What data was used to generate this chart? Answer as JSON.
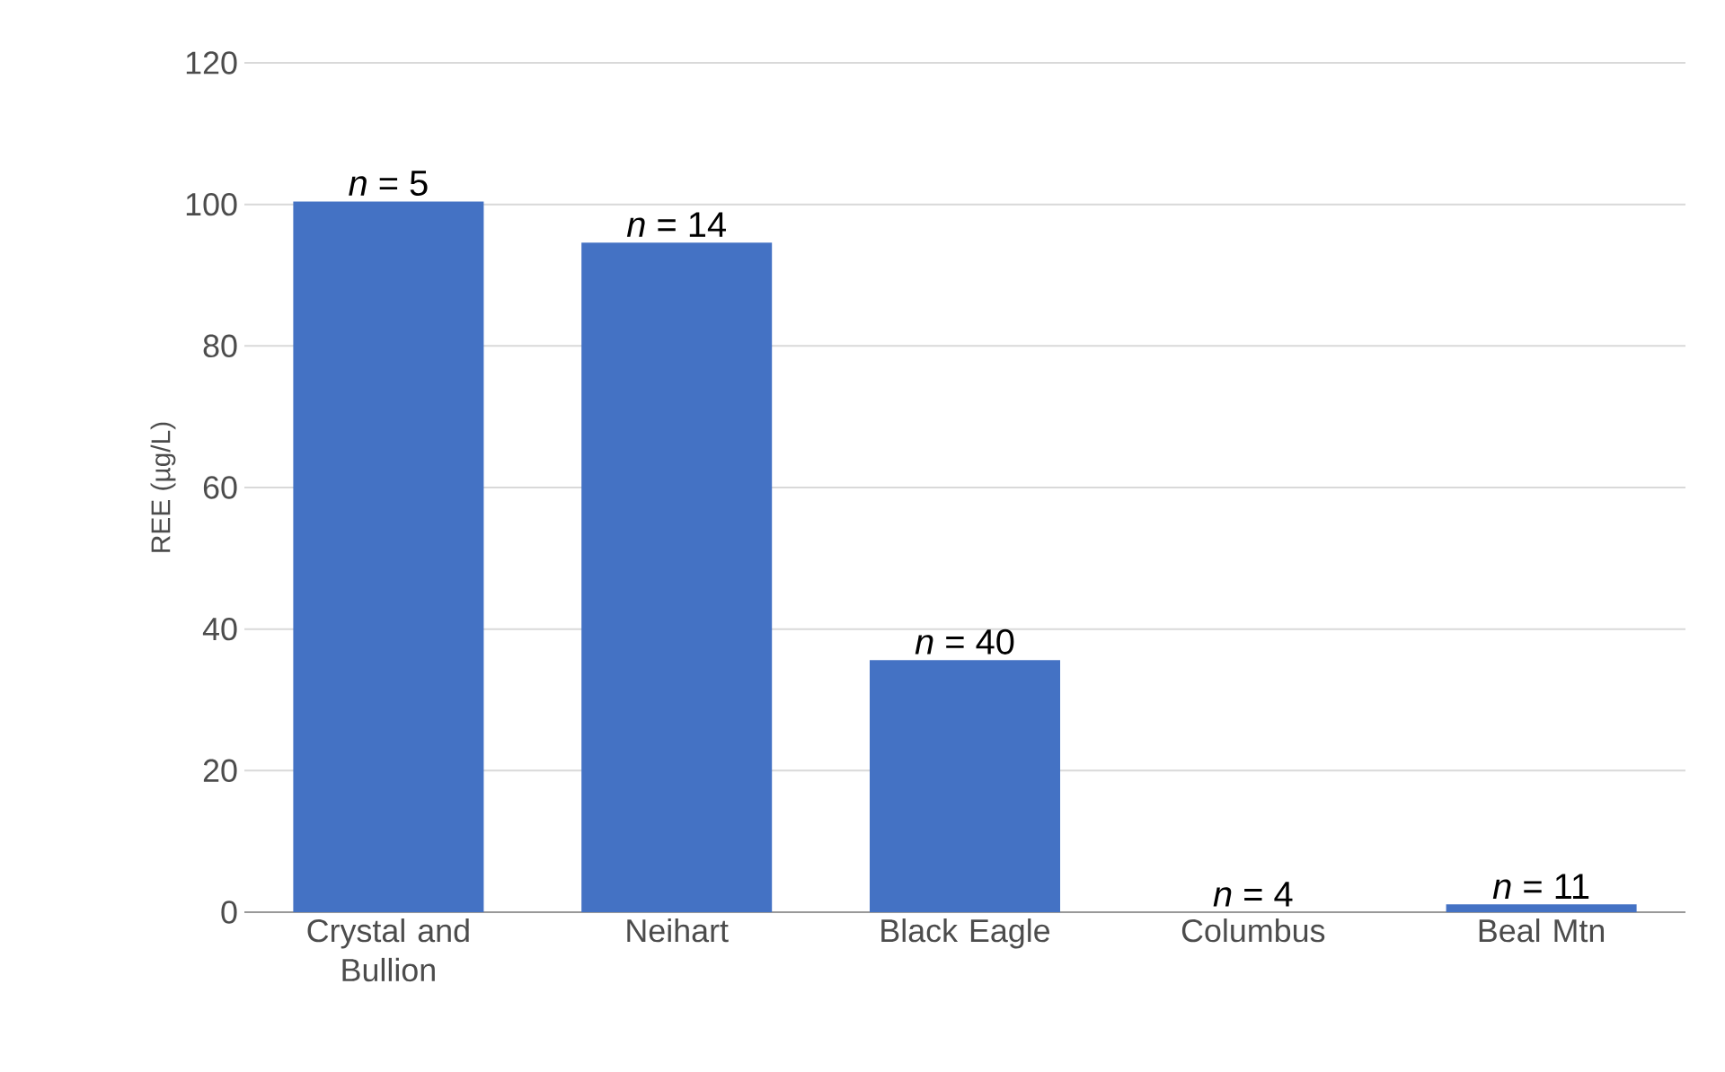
{
  "chart_data": {
    "type": "bar",
    "ylabel": "REE (µg/L)",
    "categories": [
      "Crystal and Bullion",
      "Neihart",
      "Black Eagle",
      "Columbus",
      "Beal Mtn"
    ],
    "values": [
      100.4,
      94.6,
      35.6,
      0,
      1.1
    ],
    "color": "#4472c4",
    "ylim": [
      0,
      120
    ],
    "yticks": [
      0,
      20,
      40,
      60,
      80,
      100,
      120
    ],
    "grid": "y",
    "annotations": [
      {
        "text": "*n* = 5",
        "x": "Crystal and Bullion",
        "y": 100.4
      },
      {
        "text": "*n* = 14",
        "x": "Neihart",
        "y": 94.6
      },
      {
        "text": "*n* = 40",
        "x": "Black Eagle",
        "y": 35.6
      },
      {
        "text": "*n* = 4",
        "x": "Columbus",
        "y": 0
      },
      {
        "text": "*n* = 11",
        "x": "Beal Mtn",
        "y": 1.1
      }
    ]
  }
}
